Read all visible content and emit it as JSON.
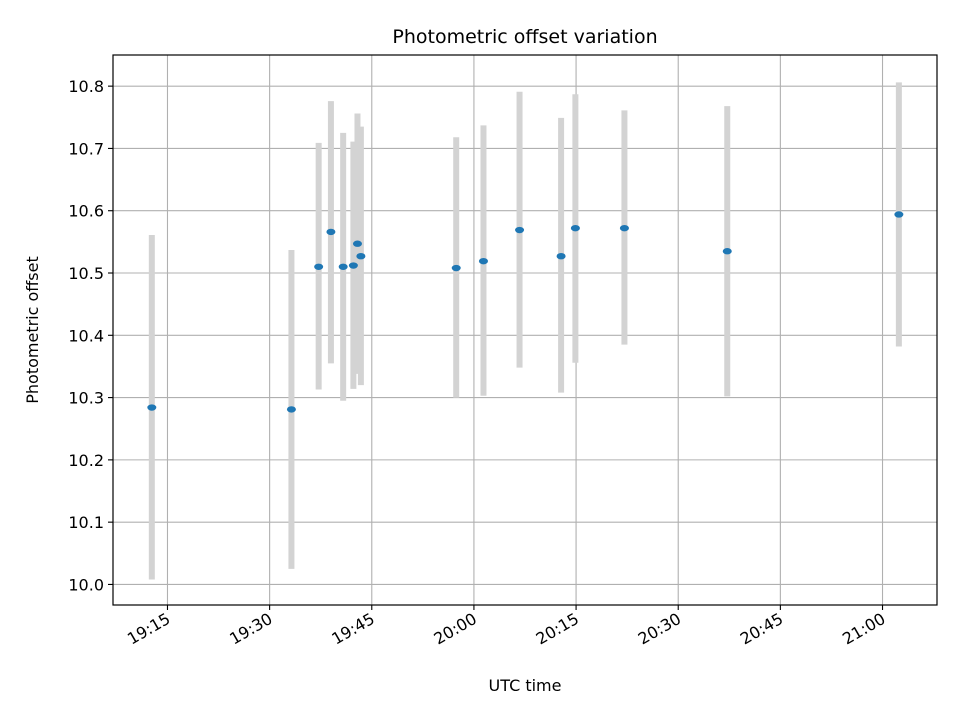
{
  "chart_data": {
    "type": "scatter",
    "title": "Photometric offset variation",
    "xlabel": "UTC time",
    "ylabel": "Photometric offset",
    "x_unit": "HH:MM",
    "xlim": [
      "19:07",
      "21:08"
    ],
    "ylim": [
      9.967,
      10.85
    ],
    "x_ticks": [
      "19:15",
      "19:30",
      "19:45",
      "20:00",
      "20:15",
      "20:30",
      "20:45",
      "21:00"
    ],
    "y_ticks": [
      10.0,
      10.1,
      10.2,
      10.3,
      10.4,
      10.5,
      10.6,
      10.7,
      10.8
    ],
    "grid": true,
    "marker_color": "#1f77b4",
    "errorbar_color": "#d3d3d3",
    "points": [
      {
        "time": "19:12.7",
        "y": 10.284,
        "yerr_low": 10.008,
        "yerr_high": 10.561
      },
      {
        "time": "19:33.2",
        "y": 10.281,
        "yerr_low": 10.025,
        "yerr_high": 10.537
      },
      {
        "time": "19:37.2",
        "y": 10.51,
        "yerr_low": 10.313,
        "yerr_high": 10.709
      },
      {
        "time": "19:39.0",
        "y": 10.566,
        "yerr_low": 10.355,
        "yerr_high": 10.776
      },
      {
        "time": "19:40.8",
        "y": 10.51,
        "yerr_low": 10.295,
        "yerr_high": 10.725
      },
      {
        "time": "19:42.3",
        "y": 10.512,
        "yerr_low": 10.314,
        "yerr_high": 10.711
      },
      {
        "time": "19:42.9",
        "y": 10.547,
        "yerr_low": 10.338,
        "yerr_high": 10.756
      },
      {
        "time": "19:43.4",
        "y": 10.527,
        "yerr_low": 10.32,
        "yerr_high": 10.735
      },
      {
        "time": "19:57.4",
        "y": 10.508,
        "yerr_low": 10.3,
        "yerr_high": 10.718
      },
      {
        "time": "20:01.4",
        "y": 10.519,
        "yerr_low": 10.303,
        "yerr_high": 10.737
      },
      {
        "time": "20:06.7",
        "y": 10.569,
        "yerr_low": 10.348,
        "yerr_high": 10.791
      },
      {
        "time": "20:12.8",
        "y": 10.527,
        "yerr_low": 10.308,
        "yerr_high": 10.749
      },
      {
        "time": "20:14.9",
        "y": 10.572,
        "yerr_low": 10.356,
        "yerr_high": 10.787
      },
      {
        "time": "20:22.1",
        "y": 10.572,
        "yerr_low": 10.385,
        "yerr_high": 10.761
      },
      {
        "time": "20:37.2",
        "y": 10.535,
        "yerr_low": 10.302,
        "yerr_high": 10.768
      },
      {
        "time": "21:02.4",
        "y": 10.594,
        "yerr_low": 10.382,
        "yerr_high": 10.806
      }
    ]
  }
}
